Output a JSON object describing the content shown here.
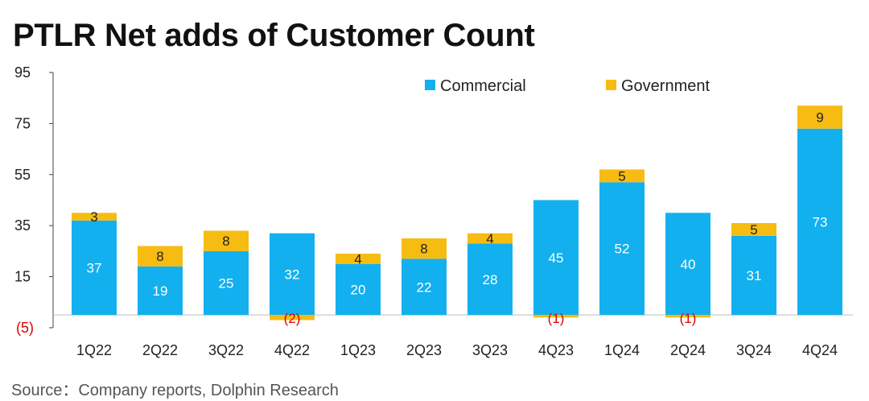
{
  "header": {
    "title": "PTLR Net adds of Customer Count"
  },
  "footer": {
    "source": "Source：Company reports, Dolphin Research"
  },
  "chart_data": {
    "type": "bar",
    "stacked": true,
    "title": "PTLR Net adds of Customer Count",
    "categories": [
      "1Q22",
      "2Q22",
      "3Q22",
      "4Q22",
      "1Q23",
      "2Q23",
      "3Q23",
      "4Q23",
      "1Q24",
      "2Q24",
      "3Q24",
      "4Q24"
    ],
    "series": [
      {
        "name": "Commercial",
        "color": "#12b0ee",
        "values": [
          37,
          19,
          25,
          32,
          20,
          22,
          28,
          45,
          52,
          40,
          31,
          73
        ],
        "labels": [
          "37",
          "19",
          "25",
          "32",
          "20",
          "22",
          "28",
          "45",
          "52",
          "40",
          "31",
          "73"
        ]
      },
      {
        "name": "Government",
        "color": "#f7bc12",
        "values": [
          3,
          8,
          8,
          -2,
          4,
          8,
          4,
          -1,
          5,
          -1,
          5,
          9
        ],
        "labels": [
          "3",
          "8",
          "8",
          "(2)",
          "4",
          "8",
          "4",
          "(1)",
          "5",
          "(1)",
          "5",
          "9"
        ]
      }
    ],
    "y_axis": {
      "ylim": [
        -5,
        95
      ],
      "ticks": [
        95,
        75,
        55,
        35,
        15,
        -5
      ],
      "tick_labels": [
        "95",
        "75",
        "55",
        "35",
        "15",
        "(5)"
      ]
    },
    "legend_position": "top-right",
    "negative_label_color": "#e00000",
    "grid": false
  }
}
